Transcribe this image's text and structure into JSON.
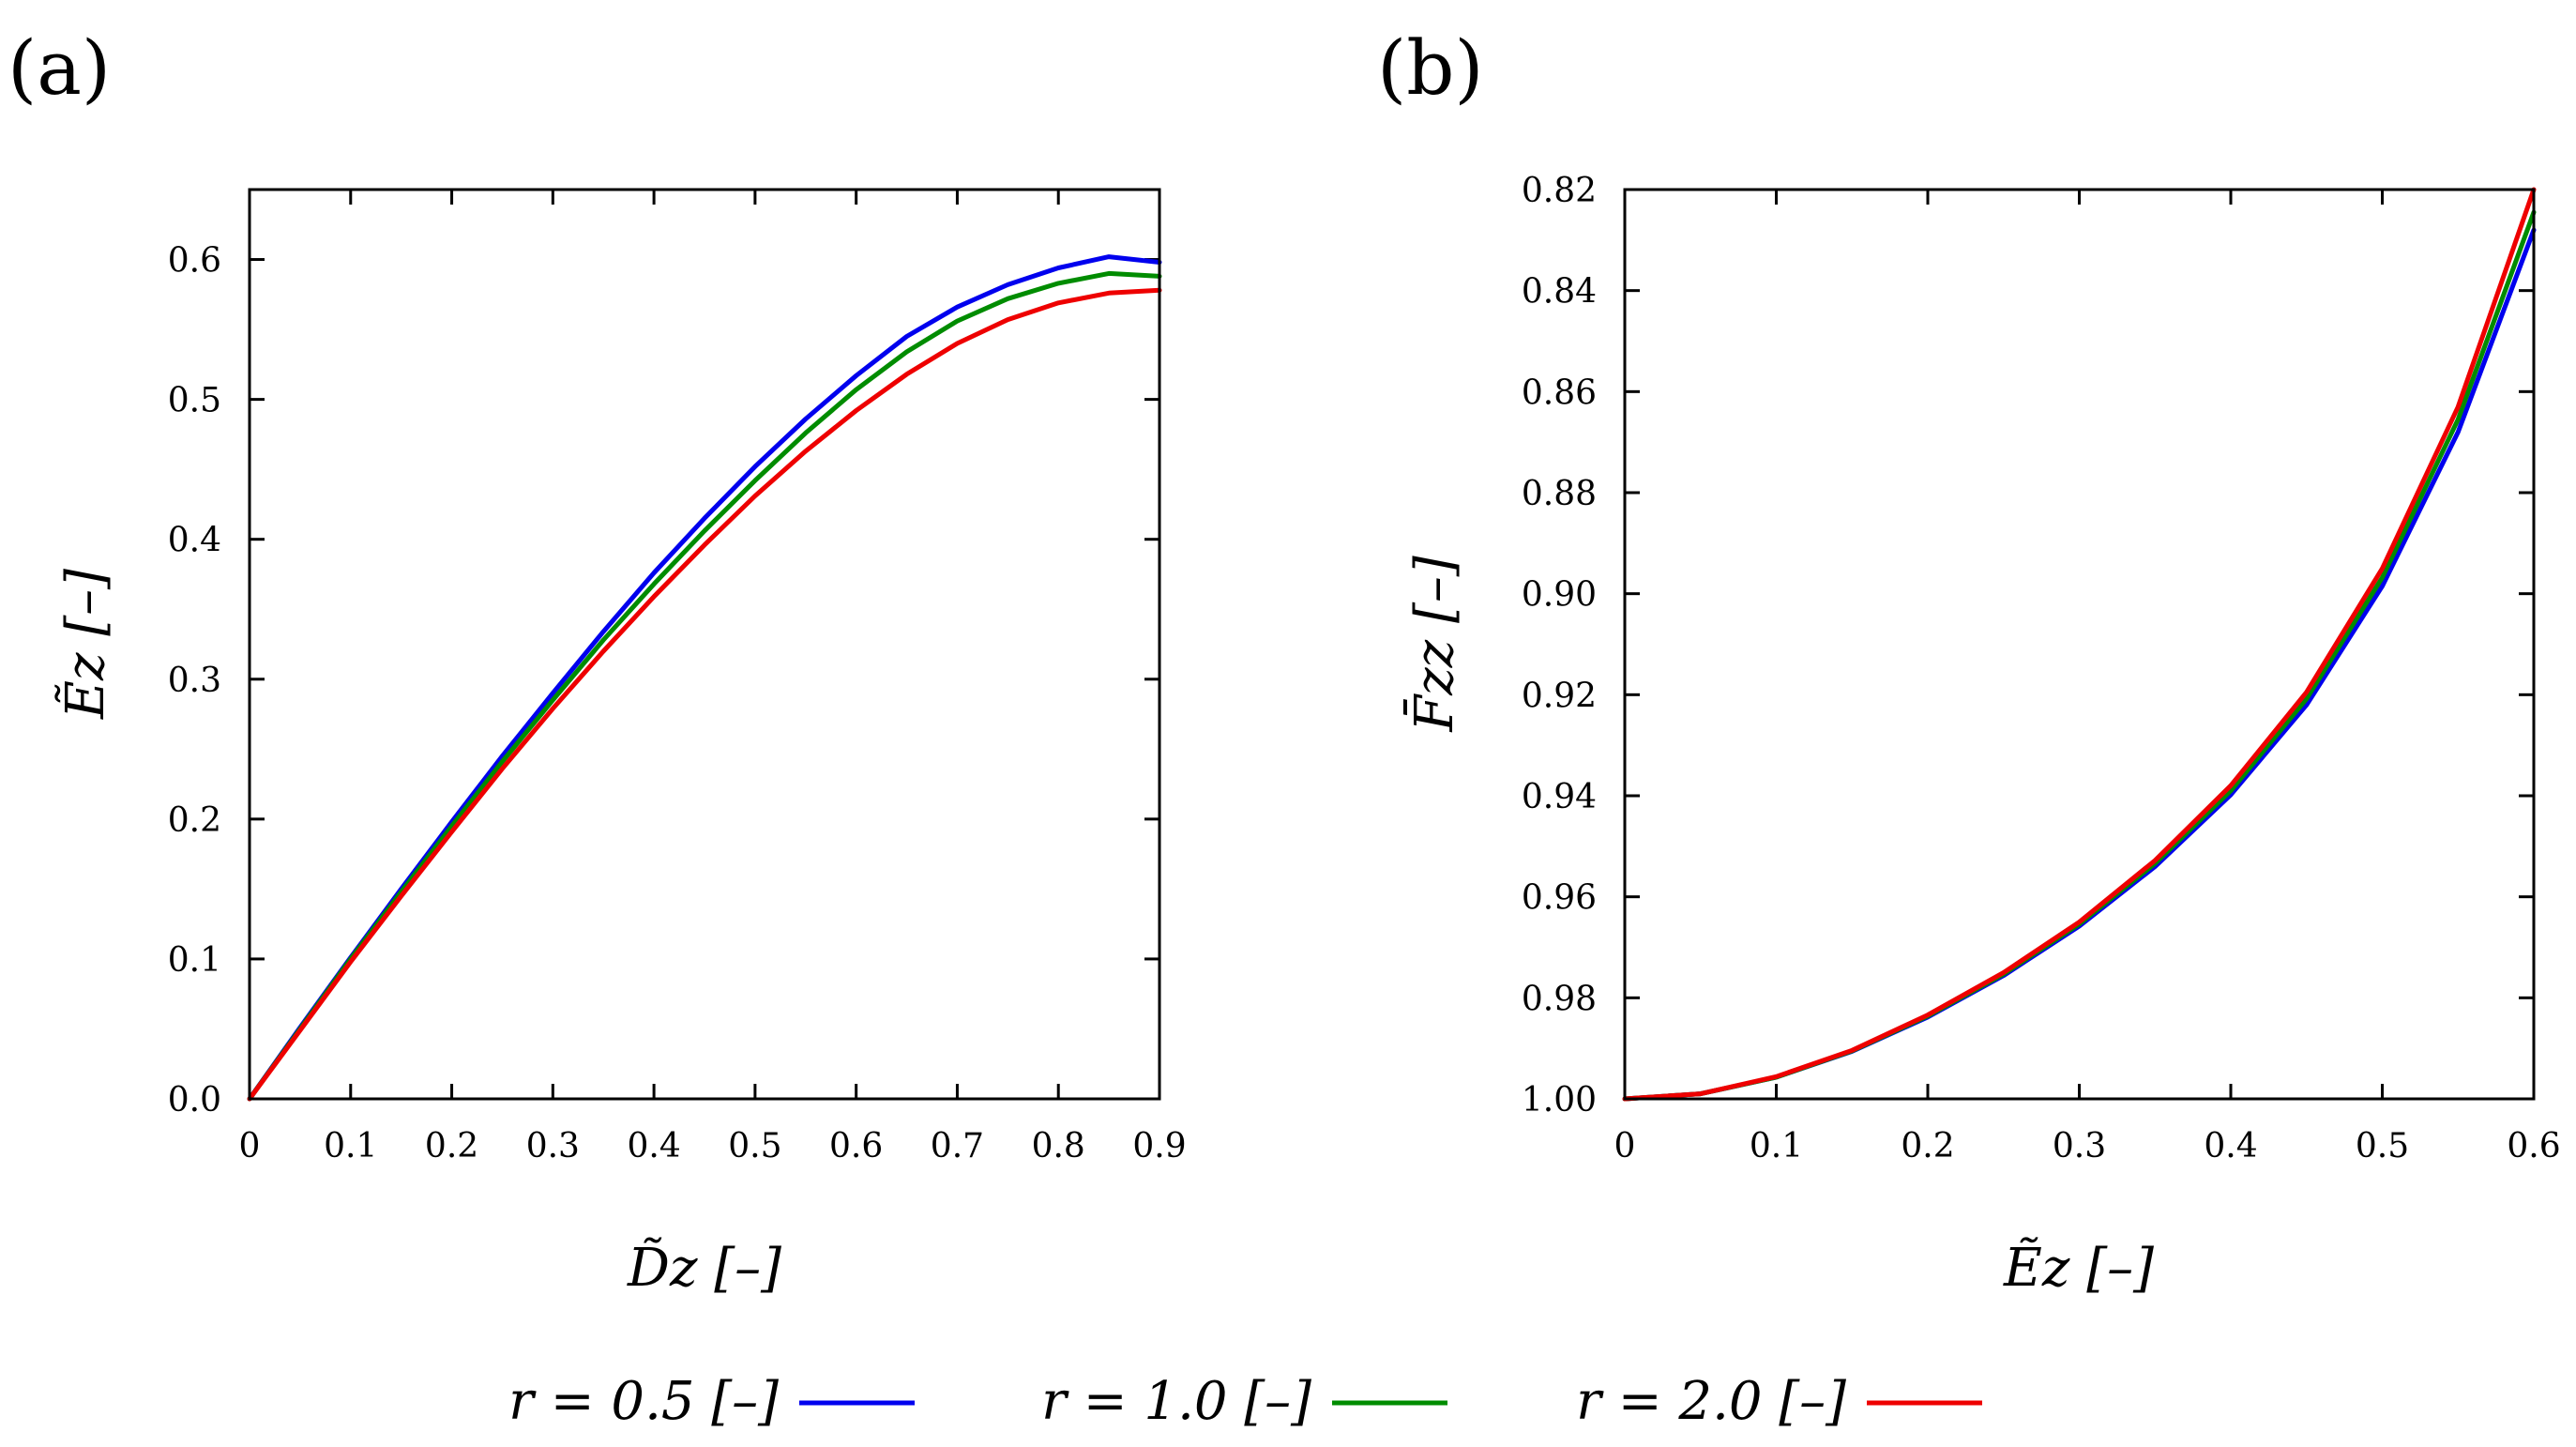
{
  "chart_data": [
    {
      "type": "line",
      "panel_label": "(a)",
      "title": "",
      "xlabel": "D̃z [–]",
      "ylabel": "Ẽz [–]",
      "xlim": [
        0,
        0.9
      ],
      "ylim": [
        0,
        0.65
      ],
      "x_ticks": [
        0,
        0.1,
        0.2,
        0.3,
        0.4,
        0.5,
        0.6,
        0.7,
        0.8,
        0.9
      ],
      "x_tick_labels": [
        "0",
        "0.1",
        "0.2",
        "0.3",
        "0.4",
        "0.5",
        "0.6",
        "0.7",
        "0.8",
        "0.9"
      ],
      "y_ticks": [
        0,
        0.1,
        0.2,
        0.3,
        0.4,
        0.5,
        0.6
      ],
      "y_tick_labels": [
        "0.0",
        "0.1",
        "0.2",
        "0.3",
        "0.4",
        "0.5",
        "0.6"
      ],
      "x": [
        0,
        0.05,
        0.1,
        0.15,
        0.2,
        0.25,
        0.3,
        0.35,
        0.4,
        0.45,
        0.5,
        0.55,
        0.6,
        0.65,
        0.7,
        0.75,
        0.8,
        0.85,
        0.9
      ],
      "series": [
        {
          "name": "r = 0.5 [–]",
          "color": "#0000ee",
          "values": [
            0,
            0.051,
            0.101,
            0.15,
            0.198,
            0.245,
            0.29,
            0.334,
            0.376,
            0.415,
            0.452,
            0.486,
            0.517,
            0.545,
            0.566,
            0.582,
            0.594,
            0.602,
            0.598
          ]
        },
        {
          "name": "r = 1.0 [–]",
          "color": "#008c00",
          "values": [
            0,
            0.05,
            0.1,
            0.148,
            0.195,
            0.241,
            0.285,
            0.328,
            0.368,
            0.406,
            0.442,
            0.476,
            0.507,
            0.534,
            0.556,
            0.572,
            0.583,
            0.59,
            0.588
          ]
        },
        {
          "name": "r = 2.0 [–]",
          "color": "#ee0000",
          "values": [
            0,
            0.049,
            0.098,
            0.145,
            0.191,
            0.236,
            0.279,
            0.32,
            0.359,
            0.396,
            0.431,
            0.463,
            0.492,
            0.518,
            0.54,
            0.557,
            0.569,
            0.576,
            0.578
          ]
        }
      ]
    },
    {
      "type": "line",
      "panel_label": "(b)",
      "title": "",
      "xlabel": "Ẽz [–]",
      "ylabel": "F̄zz [–]",
      "xlim": [
        0,
        0.6
      ],
      "ylim": [
        1.0,
        0.82
      ],
      "x_ticks": [
        0,
        0.1,
        0.2,
        0.3,
        0.4,
        0.5,
        0.6
      ],
      "x_tick_labels": [
        "0",
        "0.1",
        "0.2",
        "0.3",
        "0.4",
        "0.5",
        "0.6"
      ],
      "y_ticks": [
        0.82,
        0.84,
        0.86,
        0.88,
        0.9,
        0.92,
        0.94,
        0.96,
        0.98,
        1.0
      ],
      "y_tick_labels": [
        "0.82",
        "0.84",
        "0.86",
        "0.88",
        "0.90",
        "0.92",
        "0.94",
        "0.96",
        "0.98",
        "1.00"
      ],
      "x": [
        0,
        0.05,
        0.1,
        0.15,
        0.2,
        0.25,
        0.3,
        0.35,
        0.4,
        0.45,
        0.5,
        0.55,
        0.6
      ],
      "series": [
        {
          "name": "r = 0.5 [–]",
          "color": "#0000ee",
          "values": [
            1.0,
            0.999,
            0.9957,
            0.9906,
            0.9838,
            0.9756,
            0.9658,
            0.954,
            0.9398,
            0.922,
            0.8985,
            0.868,
            0.828
          ]
        },
        {
          "name": "r = 1.0 [–]",
          "color": "#008c00",
          "values": [
            1.0,
            0.999,
            0.9957,
            0.9905,
            0.9836,
            0.9753,
            0.9654,
            0.9534,
            0.939,
            0.9208,
            0.8968,
            0.8655,
            0.8245
          ]
        },
        {
          "name": "r = 2.0 [–]",
          "color": "#ee0000",
          "values": [
            1.0,
            0.999,
            0.9956,
            0.9904,
            0.9834,
            0.975,
            0.965,
            0.9528,
            0.938,
            0.9195,
            0.895,
            0.863,
            0.82
          ]
        }
      ]
    }
  ],
  "legend": {
    "position": "bottom",
    "entries": [
      {
        "label": "r = 0.5 [–]",
        "color": "#0000ee"
      },
      {
        "label": "r = 1.0 [–]",
        "color": "#008c00"
      },
      {
        "label": "r = 2.0 [–]",
        "color": "#ee0000"
      }
    ]
  }
}
